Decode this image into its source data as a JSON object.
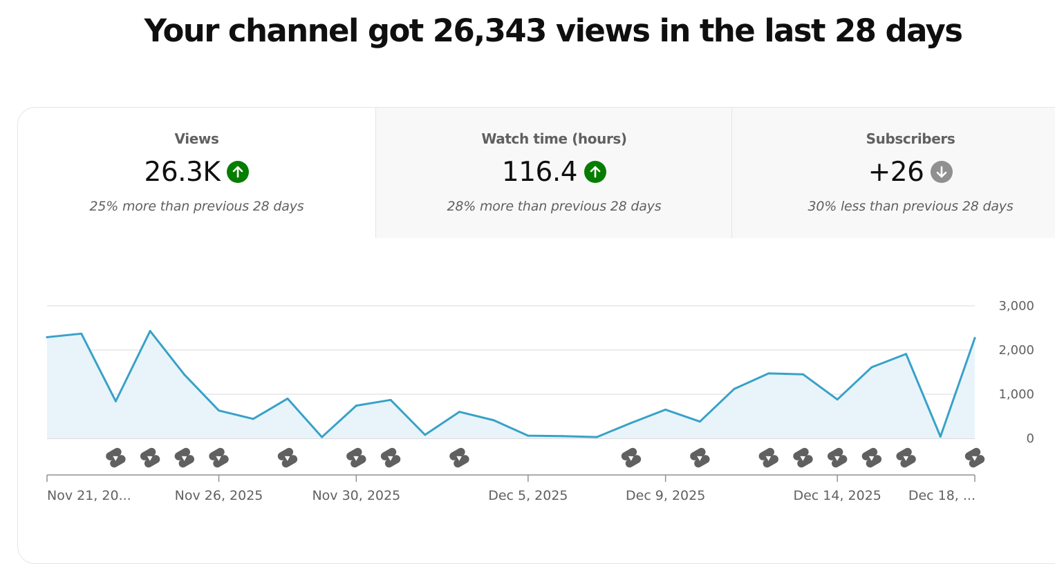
{
  "headline": "Your channel got 26,343 views in the last 28 days",
  "tabs": [
    {
      "title": "Views",
      "value": "26.3K",
      "trend": "up",
      "trend_icon": "arrow-up-icon",
      "trend_color": "#067d00",
      "comparison": "25% more than previous 28 days",
      "selected": true
    },
    {
      "title": "Watch time (hours)",
      "value": "116.4",
      "trend": "up",
      "trend_icon": "arrow-up-icon",
      "trend_color": "#067d00",
      "comparison": "28% more than previous 28 days",
      "selected": false
    },
    {
      "title": "Subscribers",
      "value": "+26",
      "trend": "down",
      "trend_icon": "arrow-down-icon",
      "trend_color": "#909090",
      "comparison": "30% less than previous 28 days",
      "selected": false
    }
  ],
  "colors": {
    "line": "#38a1c8",
    "area": "#e8f4fa",
    "grid": "#e0e0e0",
    "shorts_icon": "#606060"
  },
  "chart_data": {
    "type": "area",
    "series": [
      {
        "values": [
          2290,
          2370,
          840,
          2430,
          1440,
          630,
          440,
          900,
          30,
          740,
          870,
          80,
          600,
          410,
          60,
          50,
          30,
          350,
          650,
          380,
          1120,
          1470,
          1450,
          880,
          1610,
          1910,
          40,
          2270
        ]
      }
    ],
    "x": [
      "Nov 21, 2025",
      "Nov 22, 2025",
      "Nov 23, 2025",
      "Nov 24, 2025",
      "Nov 25, 2025",
      "Nov 26, 2025",
      "Nov 27, 2025",
      "Nov 28, 2025",
      "Nov 29, 2025",
      "Nov 30, 2025",
      "Dec 1, 2025",
      "Dec 2, 2025",
      "Dec 3, 2025",
      "Dec 4, 2025",
      "Dec 5, 2025",
      "Dec 6, 2025",
      "Dec 7, 2025",
      "Dec 8, 2025",
      "Dec 9, 2025",
      "Dec 10, 2025",
      "Dec 11, 2025",
      "Dec 12, 2025",
      "Dec 13, 2025",
      "Dec 14, 2025",
      "Dec 15, 2025",
      "Dec 16, 2025",
      "Dec 17, 2025",
      "Dec 18, 2025"
    ],
    "x_tick_labels": [
      {
        "index": 0,
        "label": "Nov 21, 20..."
      },
      {
        "index": 5,
        "label": "Nov 26, 2025"
      },
      {
        "index": 9,
        "label": "Nov 30, 2025"
      },
      {
        "index": 14,
        "label": "Dec 5, 2025"
      },
      {
        "index": 18,
        "label": "Dec 9, 2025"
      },
      {
        "index": 23,
        "label": "Dec 14, 2025"
      },
      {
        "index": 27,
        "label": "Dec 18, ..."
      }
    ],
    "y_ticks": [
      {
        "value": 0,
        "label": "0"
      },
      {
        "value": 1000,
        "label": "1,000"
      },
      {
        "value": 2000,
        "label": "2,000"
      },
      {
        "value": 3000,
        "label": "3,000"
      }
    ],
    "ylim": [
      0,
      3000
    ],
    "y_axis_side": "right",
    "grid": true,
    "shorts_marker_days": [
      2,
      3,
      4,
      5,
      7,
      9,
      10,
      12,
      17,
      19,
      21,
      22,
      23,
      24,
      25,
      27
    ],
    "shorts_marker_icon": "youtube-shorts-icon"
  }
}
